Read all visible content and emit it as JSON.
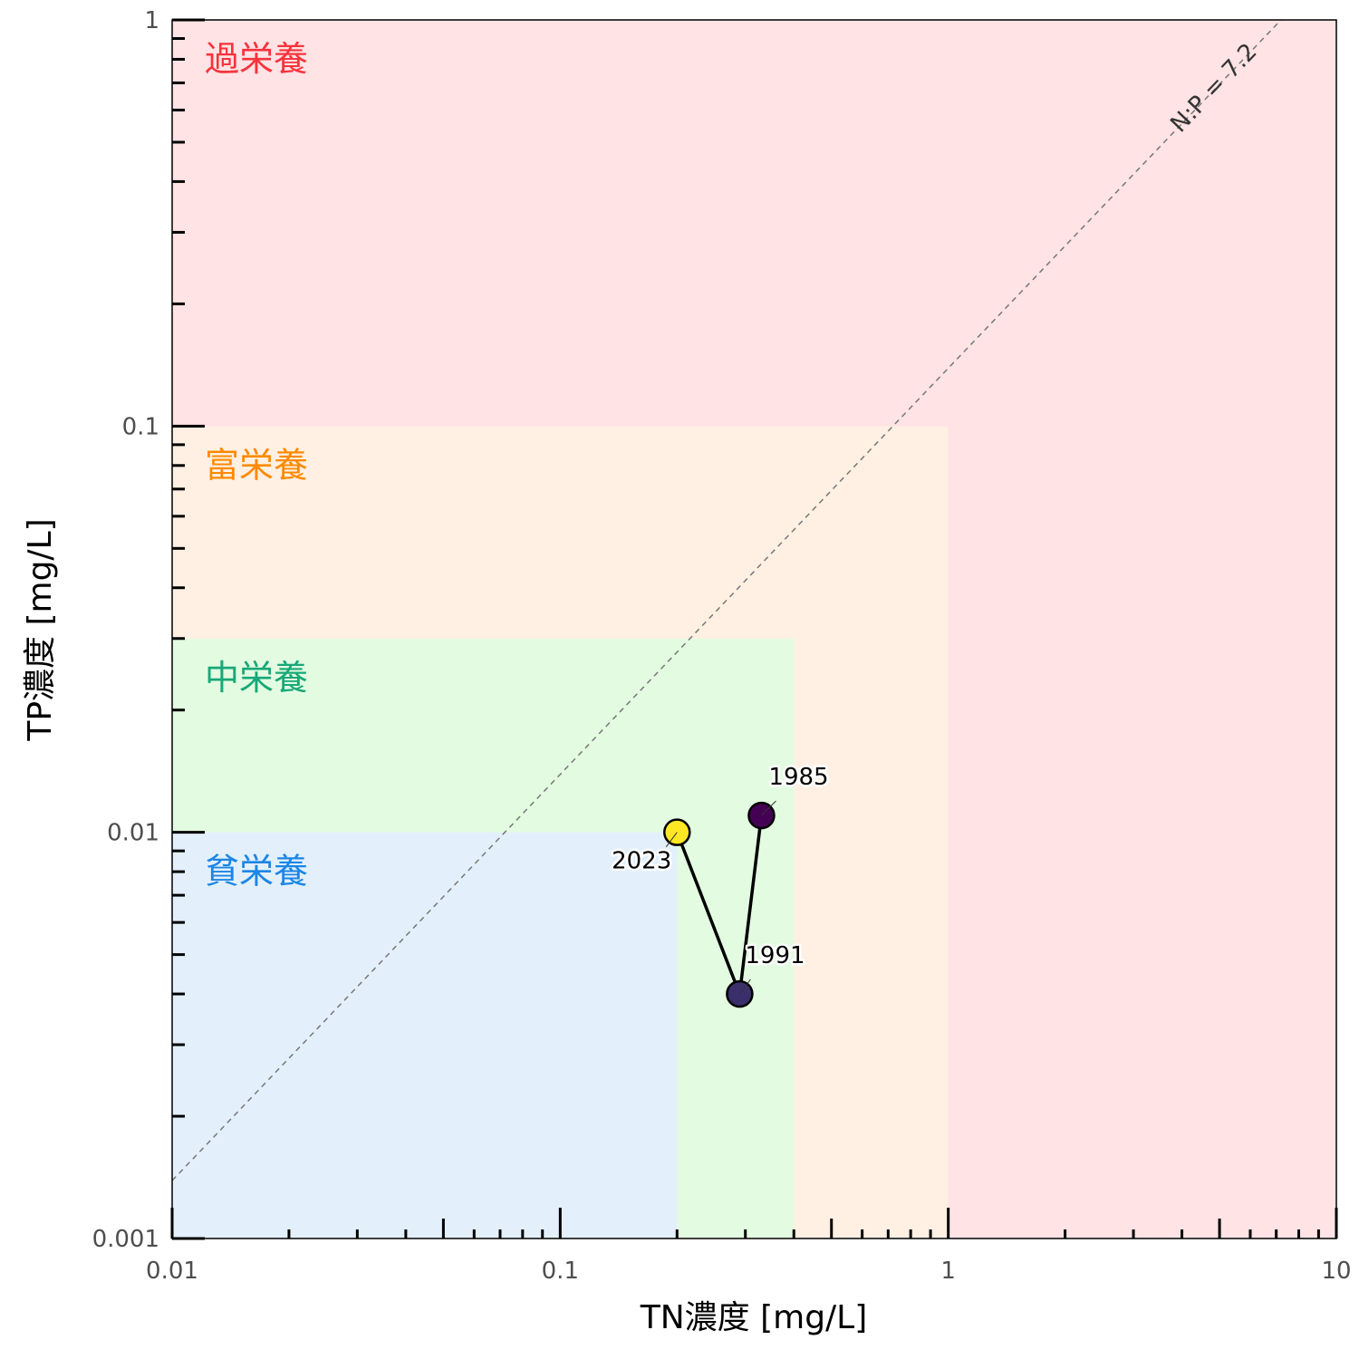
{
  "chart_data": {
    "type": "scatter",
    "xlabel": "TN濃度 [mg/L]",
    "ylabel": "TP濃度 [mg/L]",
    "x_scale": "log",
    "y_scale": "log",
    "xlim": [
      0.01,
      10
    ],
    "ylim": [
      0.001,
      1
    ],
    "x_ticks": [
      {
        "value": 0.01,
        "label": "0.01"
      },
      {
        "value": 0.1,
        "label": "0.1"
      },
      {
        "value": 1,
        "label": "1"
      },
      {
        "value": 10,
        "label": "10"
      }
    ],
    "y_ticks": [
      {
        "value": 0.001,
        "label": "0.001"
      },
      {
        "value": 0.01,
        "label": "0.01"
      },
      {
        "value": 0.1,
        "label": "0.1"
      },
      {
        "value": 1,
        "label": "1"
      }
    ],
    "grid": false,
    "zones": [
      {
        "label": "過栄養",
        "tn_max": 10,
        "tp_max": 1,
        "fill": "#ffe3e5",
        "text_color": "#f8333c",
        "label_tp": 1
      },
      {
        "label": "富栄養",
        "tn_max": 1,
        "tp_max": 0.1,
        "fill": "#fff0e3",
        "text_color": "#ff8a00",
        "label_tp": 0.1
      },
      {
        "label": "中栄養",
        "tn_max": 0.4,
        "tp_max": 0.03,
        "fill": "#e3fce1",
        "text_color": "#18a878",
        "label_tp": 0.03
      },
      {
        "label": "貧栄養",
        "tn_max": 0.2,
        "tp_max": 0.01,
        "fill": "#e3f0fc",
        "text_color": "#1c86e6",
        "label_tp": 0.01
      }
    ],
    "reference_line": {
      "label": "N:P = 7.2",
      "ratio": 7.2,
      "color": "#777777"
    },
    "points": [
      {
        "label": "1985",
        "tn": 0.33,
        "tp": 0.011,
        "color": "#440154"
      },
      {
        "label": "1991",
        "tn": 0.29,
        "tp": 0.004,
        "color": "#3b2f6b"
      },
      {
        "label": "2023",
        "tn": 0.2,
        "tp": 0.01,
        "color": "#fde725"
      }
    ]
  }
}
